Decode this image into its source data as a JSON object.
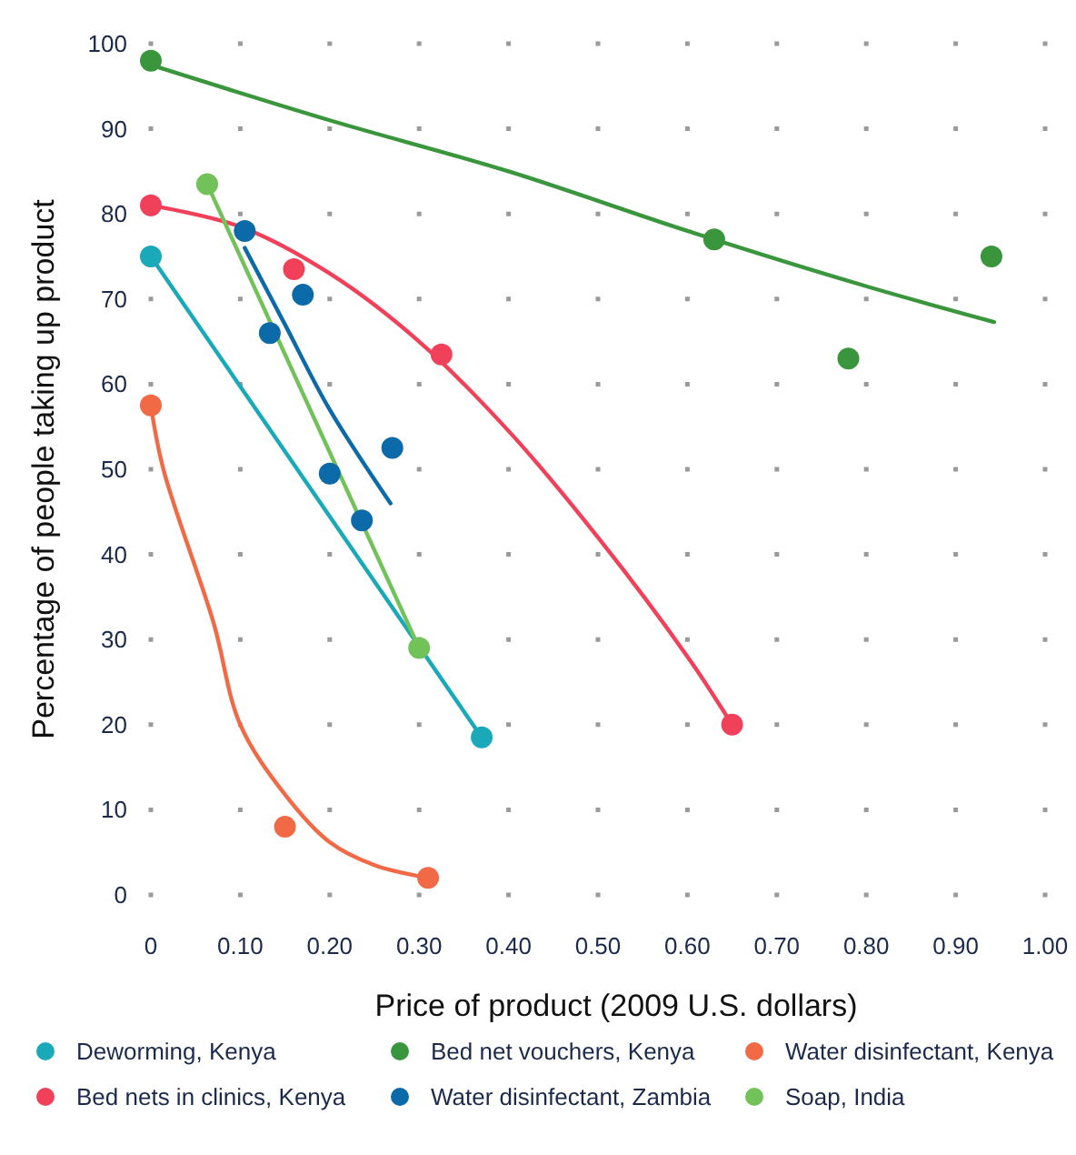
{
  "chart_data": {
    "type": "scatter",
    "xlabel": "Price of product (2009 U.S. dollars)",
    "ylabel": "Percentage of people taking up product",
    "xlim": [
      0,
      1
    ],
    "ylim": [
      0,
      100
    ],
    "xticks": [
      0,
      {
        "value": 0.1,
        "label": "0.10"
      },
      {
        "value": 0.2,
        "label": "0.20"
      },
      {
        "value": 0.3,
        "label": "0.30"
      },
      {
        "value": 0.4,
        "label": "0.40"
      },
      {
        "value": 0.5,
        "label": "0.50"
      },
      {
        "value": 0.6,
        "label": "0.60"
      },
      {
        "value": 0.7,
        "label": "0.70"
      },
      {
        "value": 0.8,
        "label": "0.80"
      },
      {
        "value": 0.9,
        "label": "0.90"
      },
      {
        "value": 1,
        "label": "1.00"
      }
    ],
    "yticks": [
      0,
      10,
      20,
      30,
      40,
      50,
      60,
      70,
      80,
      90,
      100
    ],
    "grid": true,
    "legend": "bottom",
    "series": [
      {
        "name": "Deworming, Kenya",
        "marker": "circle",
        "color": "#1aa9b8",
        "x": [
          0,
          0.37
        ],
        "values": [
          75,
          18.5
        ]
      },
      {
        "name": "Bed net vouchers, Kenya",
        "marker": "circle",
        "color": "#3a963c",
        "x": [
          0,
          0.63,
          0.78,
          0.94
        ],
        "values": [
          98,
          77,
          63,
          75
        ]
      },
      {
        "name": "Water disinfectant, Kenya",
        "marker": "circle",
        "color": "#f26a45",
        "x": [
          0,
          0.15,
          0.31
        ],
        "values": [
          57.5,
          8,
          2
        ]
      },
      {
        "name": "Bed nets in clinics, Kenya",
        "marker": "circle",
        "color": "#f0405a",
        "x": [
          0,
          0.16,
          0.325,
          0.65
        ],
        "values": [
          81,
          73.5,
          63.5,
          20
        ]
      },
      {
        "name": "Water disinfectant, Zambia",
        "marker": "circle",
        "color": "#0d6aa8",
        "x": [
          0.105,
          0.133,
          0.17,
          0.2,
          0.236,
          0.27
        ],
        "values": [
          78,
          66,
          70.5,
          49.5,
          44,
          52.5
        ]
      },
      {
        "name": "Soap, India",
        "marker": "circle",
        "color": "#72c25a",
        "x": [
          0.063,
          0.3
        ],
        "values": [
          83.5,
          29
        ]
      },
      {
        "type": "line",
        "color": "#1aa9b8",
        "x": [
          0,
          0.37
        ],
        "values": [
          75,
          18.5
        ]
      },
      {
        "type": "line",
        "color": "#3a963c",
        "x": [
          0,
          0.2,
          0.4,
          0.6,
          0.8,
          0.943
        ],
        "values": [
          97.5,
          91,
          85,
          78,
          71.5,
          67.3
        ]
      },
      {
        "type": "line",
        "color": "#f26a45",
        "x": [
          0,
          0.014,
          0.07,
          0.1,
          0.15,
          0.2,
          0.25,
          0.31
        ],
        "values": [
          57.5,
          50,
          32,
          20,
          11.8,
          6.2,
          3.5,
          2
        ]
      },
      {
        "type": "line",
        "color": "#f0405a",
        "x": [
          0,
          0.1,
          0.2,
          0.3,
          0.4,
          0.5,
          0.6,
          0.65
        ],
        "values": [
          81,
          78.5,
          73,
          65,
          54.5,
          42,
          28,
          20
        ]
      },
      {
        "type": "line",
        "color": "#0d6aa8",
        "x": [
          0.105,
          0.15,
          0.2,
          0.268
        ],
        "values": [
          76,
          67,
          57,
          46
        ]
      },
      {
        "type": "line",
        "color": "#72c25a",
        "x": [
          0.063,
          0.3
        ],
        "values": [
          83.5,
          29
        ]
      }
    ]
  }
}
